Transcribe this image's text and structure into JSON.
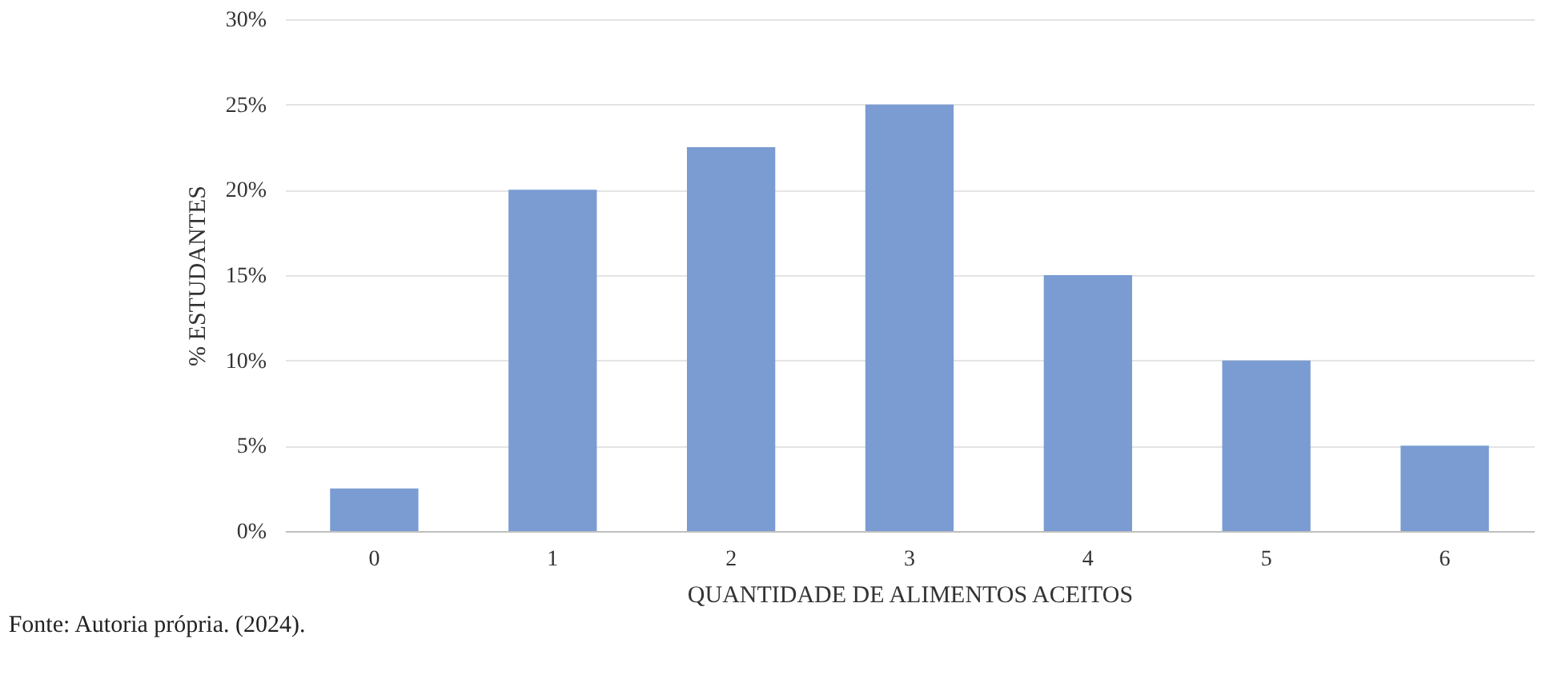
{
  "chart_data": {
    "type": "bar",
    "xlabel": "QUANTIDADE DE ALIMENTOS ACEITOS",
    "ylabel": "% ESTUDANTES",
    "categories": [
      "0",
      "1",
      "2",
      "3",
      "4",
      "5",
      "6"
    ],
    "values": [
      2.5,
      20,
      22.5,
      25,
      15,
      10,
      5
    ],
    "color": "#7a9cd3",
    "ylim": [
      0,
      30
    ],
    "yticks": [
      {
        "value": 0,
        "label": "0%"
      },
      {
        "value": 5,
        "label": "5%"
      },
      {
        "value": 10,
        "label": "10%"
      },
      {
        "value": 15,
        "label": "15%"
      },
      {
        "value": 20,
        "label": "20%"
      },
      {
        "value": 25,
        "label": "25%"
      },
      {
        "value": 30,
        "label": "30%"
      }
    ],
    "grid": "y",
    "annotations": [
      "Fonte: Autoria própria. (2024)."
    ]
  }
}
